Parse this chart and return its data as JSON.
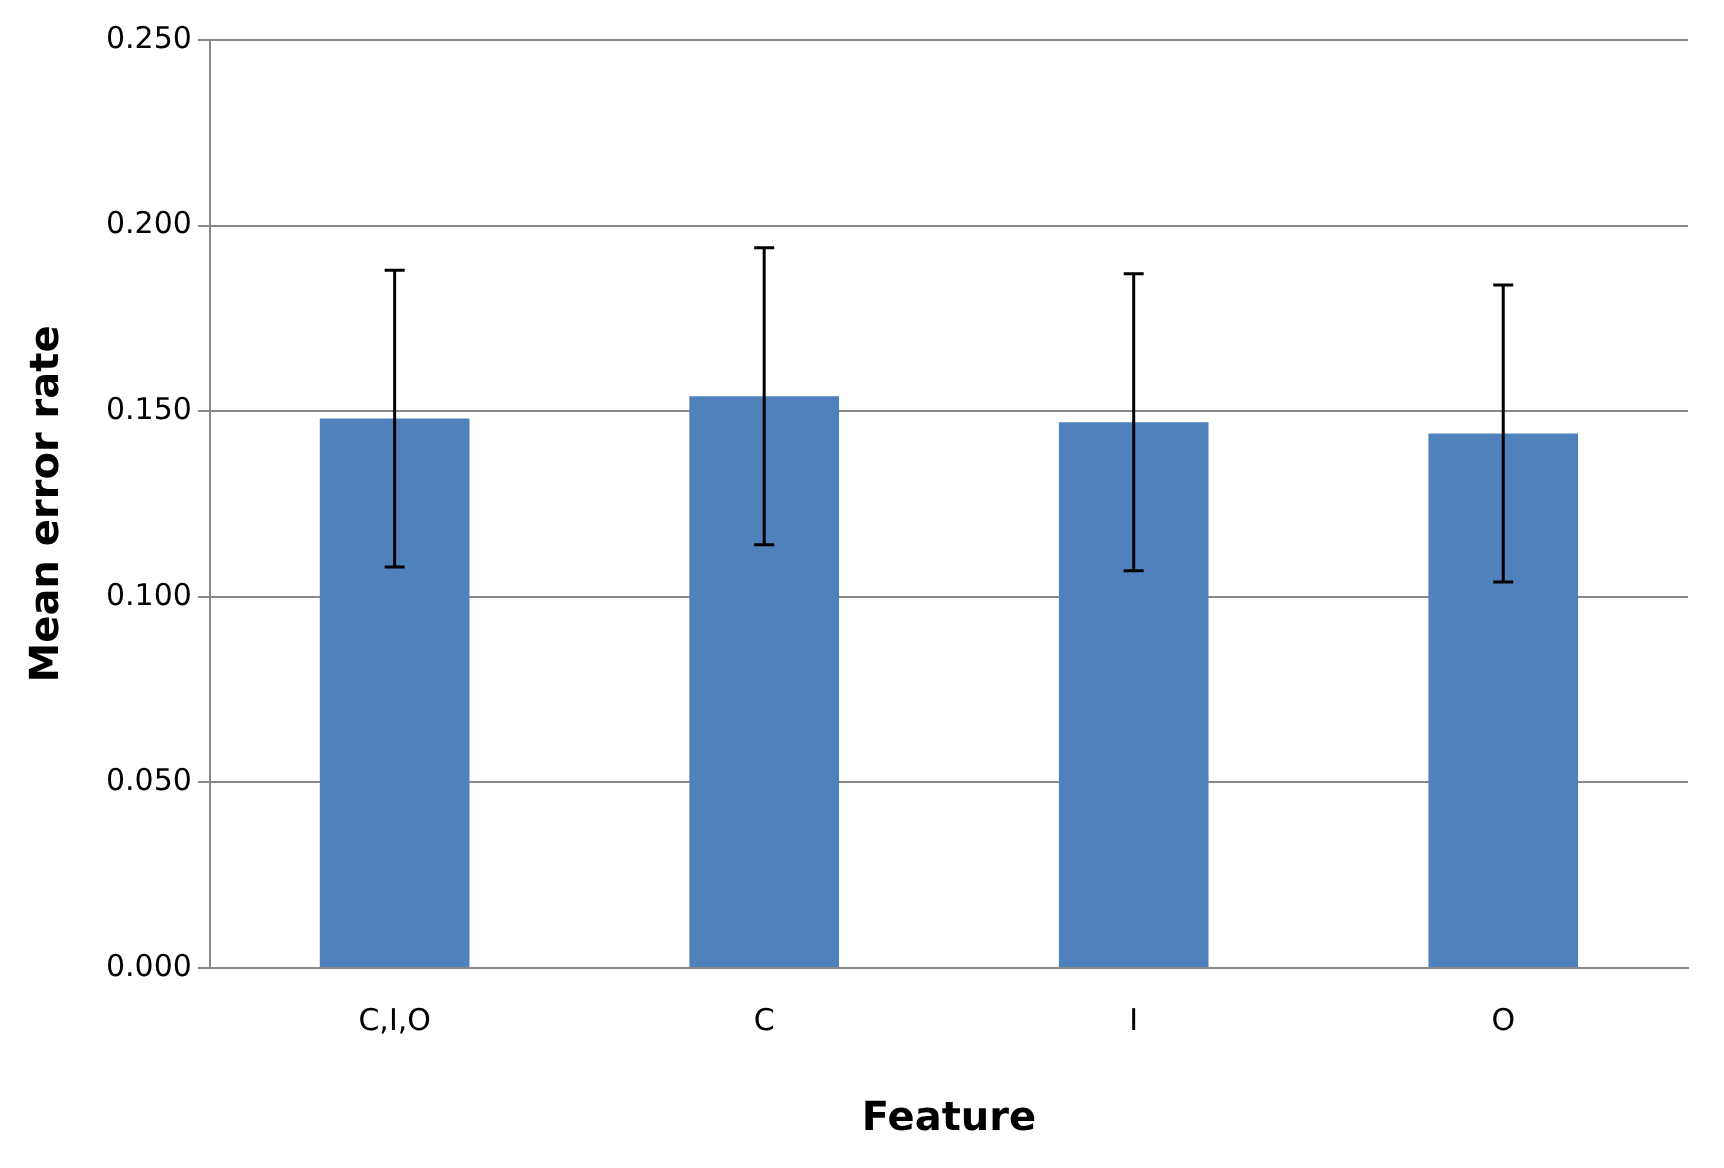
{
  "chart_data": {
    "type": "bar",
    "xlabel": "Feature",
    "ylabel": "Mean error rate",
    "categories": [
      "C,I,O",
      "C",
      "I",
      "O"
    ],
    "values": [
      0.148,
      0.154,
      0.147,
      0.144
    ],
    "errors": [
      0.04,
      0.04,
      0.04,
      0.04
    ],
    "color": "#4f81bd",
    "ylim": [
      0,
      0.25
    ],
    "yticks": [
      {
        "value": 0,
        "label": "0.000"
      },
      {
        "value": 0.05,
        "label": "0.050"
      },
      {
        "value": 0.1,
        "label": "0.100"
      },
      {
        "value": 0.15,
        "label": "0.150"
      },
      {
        "value": 0.2,
        "label": "0.200"
      },
      {
        "value": 0.25,
        "label": "0.250"
      }
    ],
    "grid": "y"
  }
}
